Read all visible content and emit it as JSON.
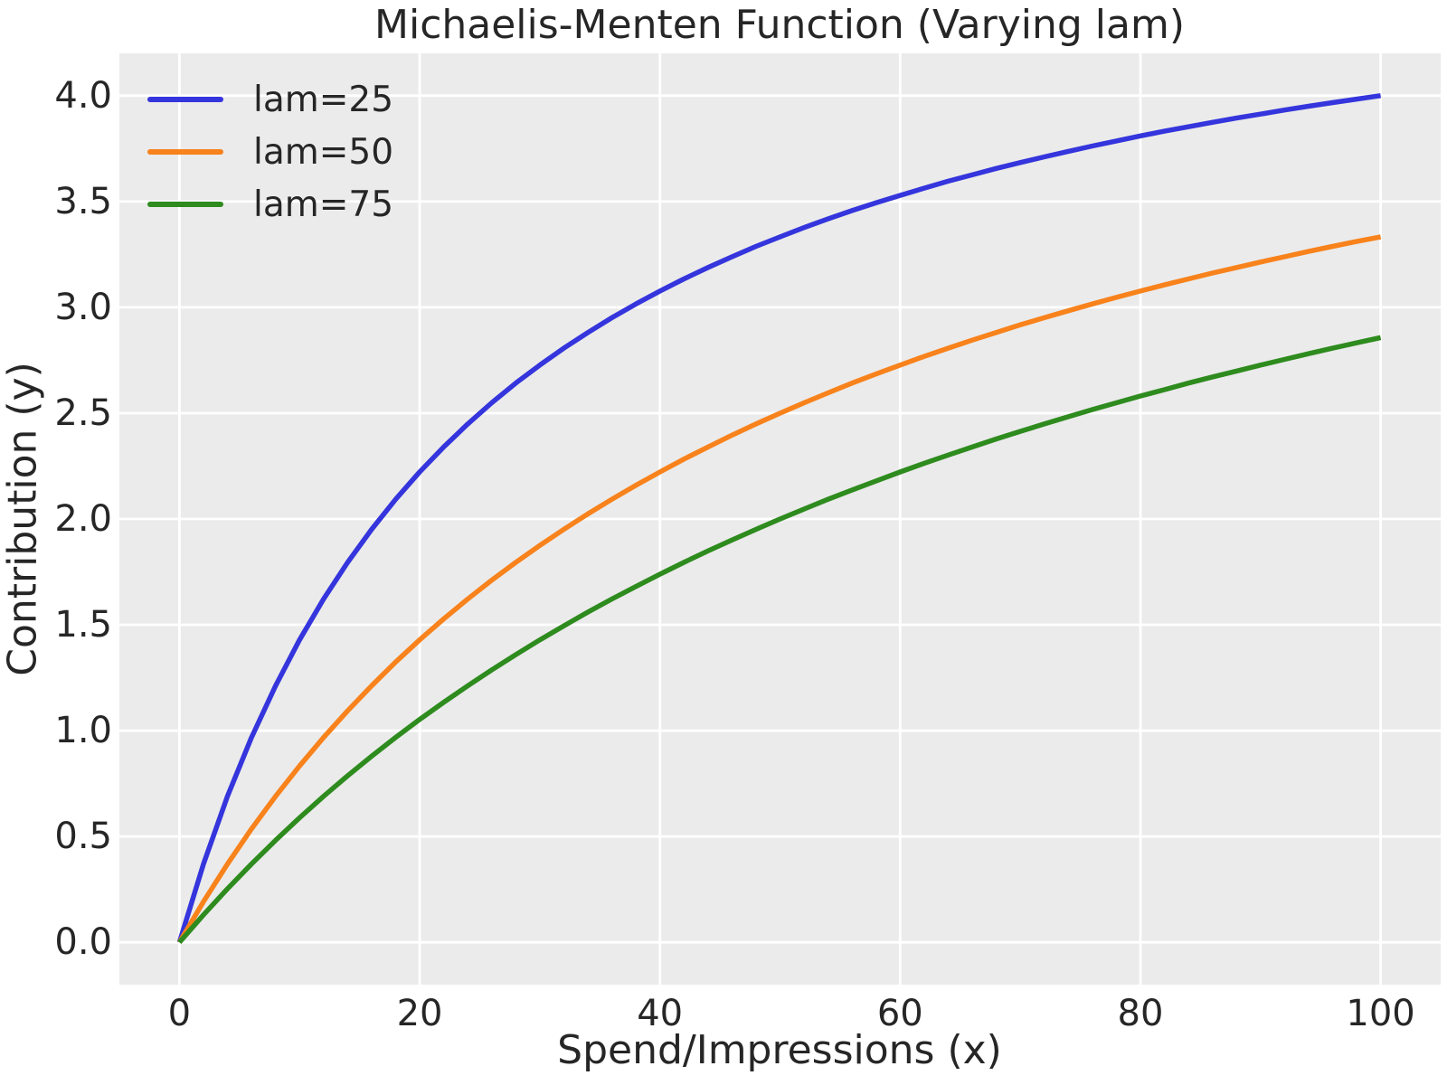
{
  "figure": {
    "background": "#ffffff",
    "axes_background": "#ebebeb",
    "grid_color": "#ffffff",
    "text_color": "#262626"
  },
  "chart_data": {
    "type": "line",
    "title": "Michaelis-Menten Function (Varying lam)",
    "xlabel": "Spend/Impressions (x)",
    "ylabel": "Contribution (y)",
    "xlim": [
      -5,
      105
    ],
    "ylim": [
      -0.2,
      4.2
    ],
    "xticks": [
      0,
      20,
      40,
      60,
      80,
      100
    ],
    "yticks": [
      0.0,
      0.5,
      1.0,
      1.5,
      2.0,
      2.5,
      3.0,
      3.5,
      4.0
    ],
    "ytick_decimals": 1,
    "grid": true,
    "legend": {
      "position": "upper left",
      "frame": false,
      "entries": [
        "lam=25",
        "lam=50",
        "lam=75"
      ]
    },
    "x": [
      0,
      2,
      4,
      6,
      8,
      10,
      12,
      14,
      16,
      18,
      20,
      22,
      24,
      26,
      28,
      30,
      32,
      34,
      36,
      38,
      40,
      42,
      44,
      46,
      48,
      50,
      52,
      54,
      56,
      58,
      60,
      62,
      64,
      66,
      68,
      70,
      72,
      74,
      76,
      78,
      80,
      82,
      84,
      86,
      88,
      90,
      92,
      94,
      96,
      98,
      100
    ],
    "series": [
      {
        "name": "lam=25",
        "color": "#3535dd",
        "values": [
          0,
          0.37,
          0.69,
          0.968,
          1.212,
          1.429,
          1.622,
          1.795,
          1.951,
          2.093,
          2.222,
          2.34,
          2.449,
          2.549,
          2.642,
          2.727,
          2.807,
          2.881,
          2.951,
          3.016,
          3.077,
          3.134,
          3.188,
          3.239,
          3.288,
          3.333,
          3.377,
          3.418,
          3.457,
          3.494,
          3.529,
          3.563,
          3.596,
          3.626,
          3.656,
          3.684,
          3.711,
          3.737,
          3.762,
          3.786,
          3.81,
          3.832,
          3.853,
          3.874,
          3.894,
          3.913,
          3.932,
          3.95,
          3.967,
          3.984,
          4.0
        ]
      },
      {
        "name": "lam=50",
        "color": "#f8821b",
        "values": [
          0,
          0.192,
          0.37,
          0.536,
          0.69,
          0.833,
          0.968,
          1.094,
          1.212,
          1.324,
          1.429,
          1.528,
          1.622,
          1.711,
          1.795,
          1.875,
          1.951,
          2.024,
          2.093,
          2.159,
          2.222,
          2.283,
          2.34,
          2.396,
          2.449,
          2.5,
          2.549,
          2.596,
          2.642,
          2.685,
          2.727,
          2.768,
          2.807,
          2.845,
          2.881,
          2.917,
          2.951,
          2.984,
          3.016,
          3.047,
          3.077,
          3.106,
          3.134,
          3.162,
          3.188,
          3.214,
          3.239,
          3.264,
          3.288,
          3.311,
          3.333
        ]
      },
      {
        "name": "lam=75",
        "color": "#2e8b1e",
        "values": [
          0,
          0.13,
          0.253,
          0.37,
          0.482,
          0.588,
          0.69,
          0.787,
          0.879,
          0.968,
          1.053,
          1.134,
          1.212,
          1.287,
          1.359,
          1.429,
          1.495,
          1.56,
          1.622,
          1.681,
          1.739,
          1.795,
          1.849,
          1.901,
          1.951,
          2.0,
          2.047,
          2.093,
          2.137,
          2.18,
          2.222,
          2.263,
          2.302,
          2.34,
          2.378,
          2.414,
          2.449,
          2.483,
          2.517,
          2.549,
          2.581,
          2.611,
          2.642,
          2.671,
          2.699,
          2.727,
          2.754,
          2.781,
          2.807,
          2.832,
          2.857
        ]
      }
    ]
  }
}
